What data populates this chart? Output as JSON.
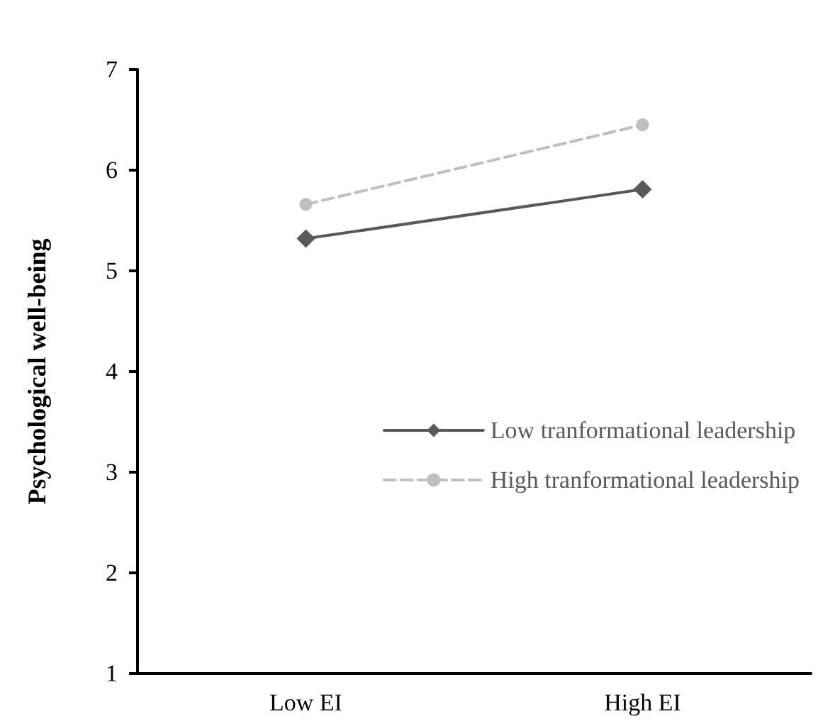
{
  "chart_data": {
    "type": "line",
    "ylabel": "Psychological well-being",
    "categories": [
      "Low EI",
      "High EI"
    ],
    "series": [
      {
        "name": "Low tranformational leadership",
        "color": "#595959",
        "values": [
          5.32,
          5.81
        ],
        "marker": "diamond",
        "line_style": "solid"
      },
      {
        "name": "High tranformational leadership",
        "color": "#bfbfbf",
        "values": [
          5.66,
          6.45
        ],
        "marker": "circle",
        "line_style": "dashed"
      }
    ],
    "ylim": [
      1,
      7
    ],
    "yticks": [
      1,
      2,
      3,
      4,
      5,
      6,
      7
    ],
    "grid": false,
    "legend": "right"
  }
}
